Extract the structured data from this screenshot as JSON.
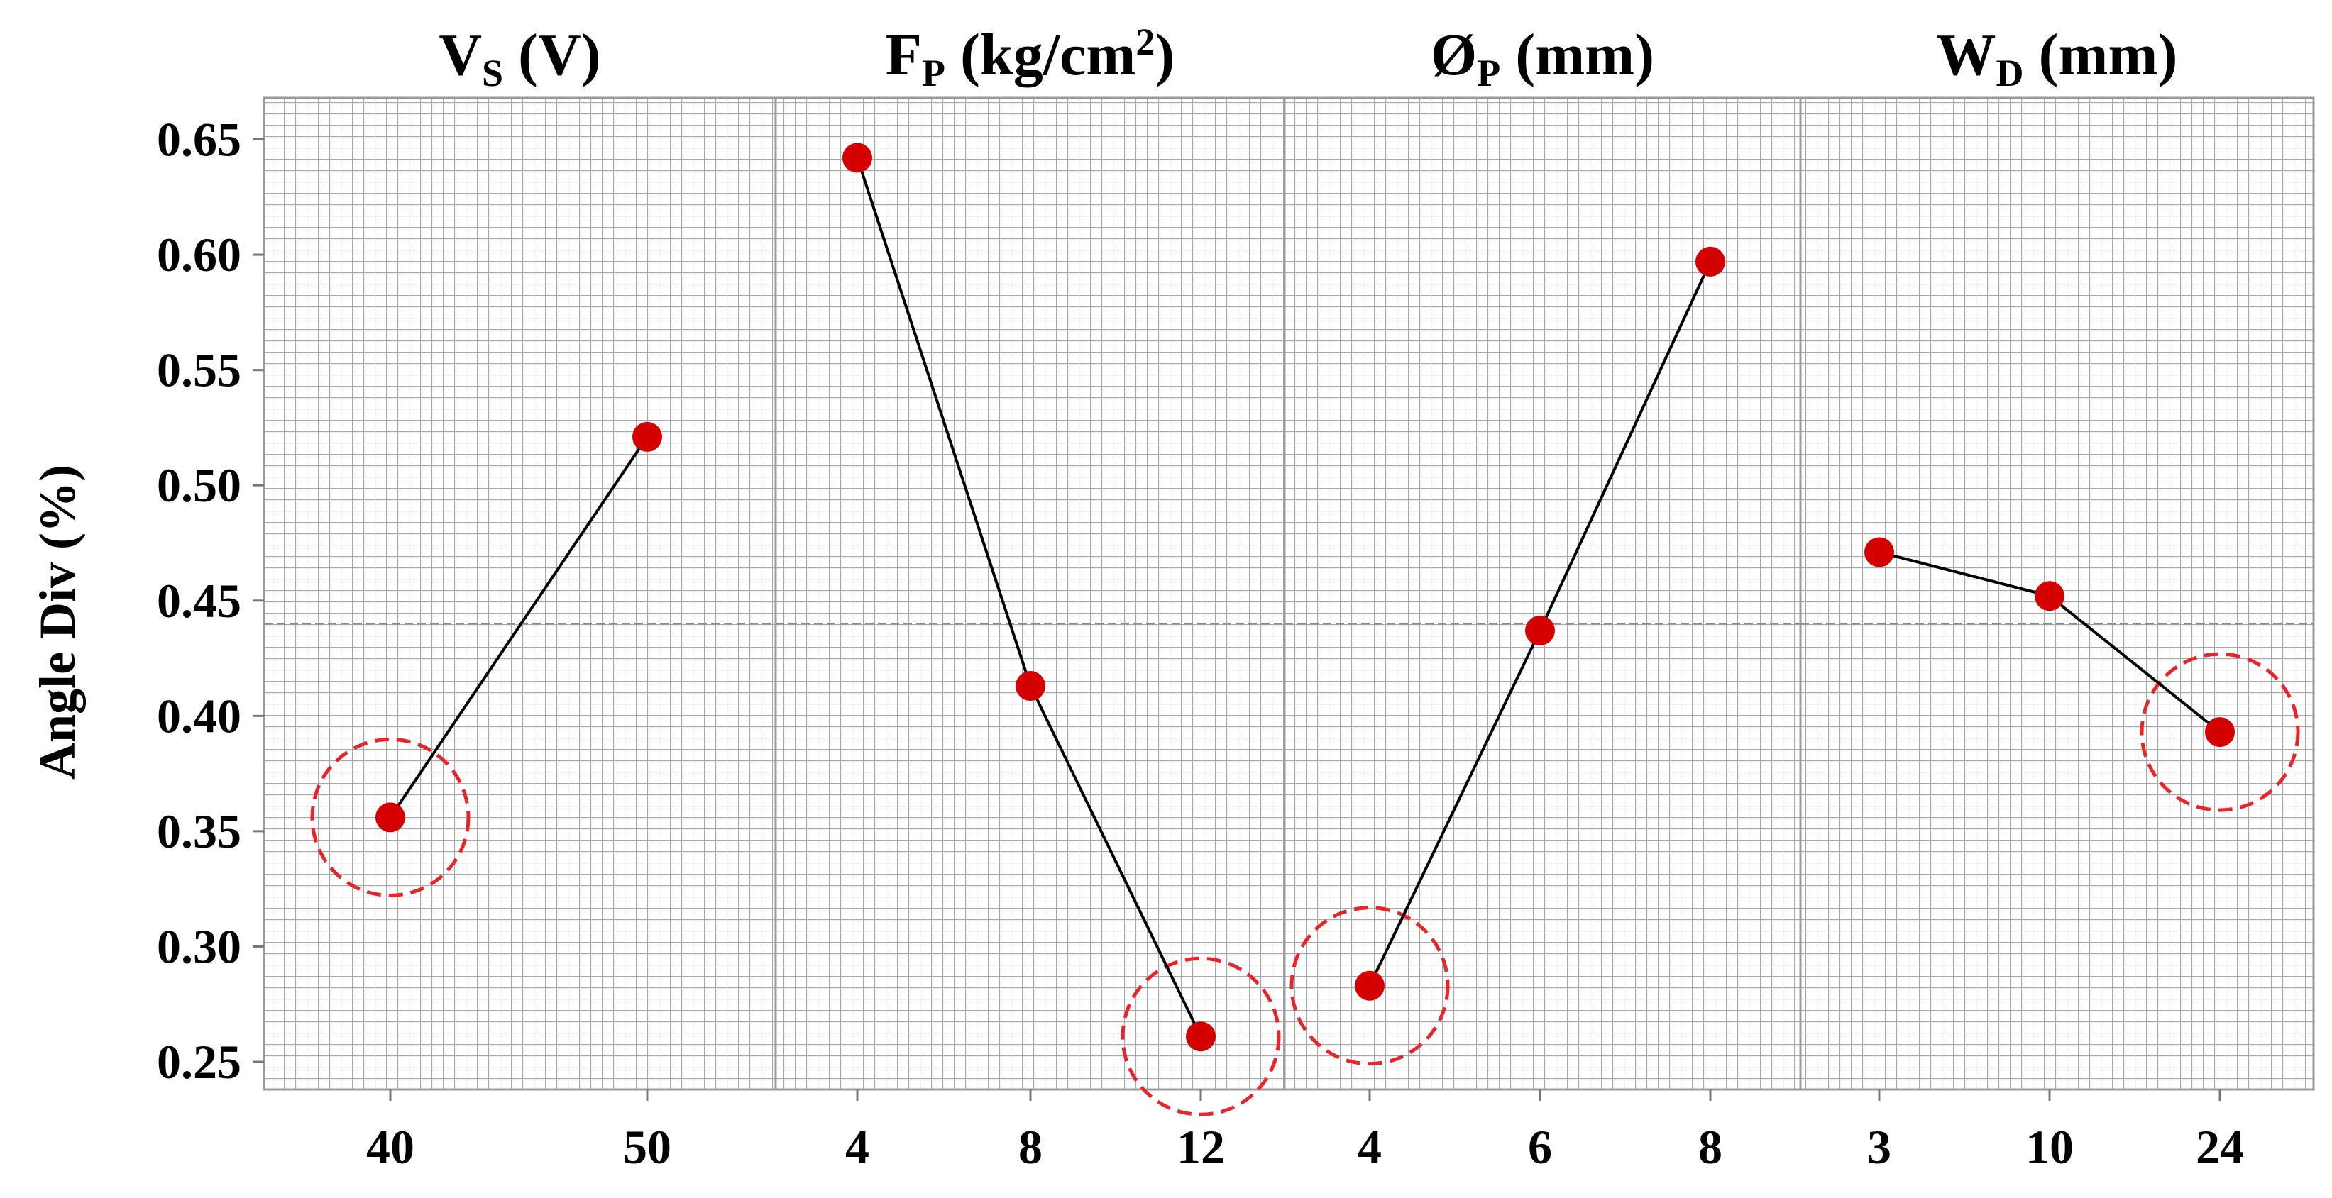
{
  "chart_data": {
    "type": "line",
    "ylabel": "Angle Div (%)",
    "ylim": [
      0.238,
      0.668
    ],
    "yticks": [
      "0.25",
      "0.30",
      "0.35",
      "0.40",
      "0.45",
      "0.50",
      "0.55",
      "0.60",
      "0.65"
    ],
    "mean_line": 0.44,
    "grid": "on",
    "colors": {
      "marker": "#d40000",
      "line": "#000000",
      "grid": "#a8a8a8",
      "circle": "#e8262a"
    },
    "panels": [
      {
        "title": {
          "main": "V",
          "sub": "S",
          "rest": " (V)"
        },
        "x": [
          "40",
          "50"
        ],
        "values": [
          0.356,
          0.521
        ],
        "highlight": 0
      },
      {
        "title": {
          "main": "F",
          "sub": "P",
          "rest": " (kg/cm",
          "sup": "2",
          "tail": ")"
        },
        "x": [
          "4",
          "8",
          "12"
        ],
        "values": [
          0.642,
          0.413,
          0.261
        ],
        "highlight": 2
      },
      {
        "title": {
          "main": "Ø",
          "sub": "P",
          "rest": " (mm)"
        },
        "x": [
          "4",
          "6",
          "8"
        ],
        "values": [
          0.283,
          0.437,
          0.597
        ],
        "highlight": 0
      },
      {
        "title": {
          "main": "W",
          "sub": "D",
          "rest": " (mm)"
        },
        "x": [
          "3",
          "10",
          "24"
        ],
        "values": [
          0.471,
          0.452,
          0.393
        ],
        "highlight": 2
      }
    ]
  }
}
